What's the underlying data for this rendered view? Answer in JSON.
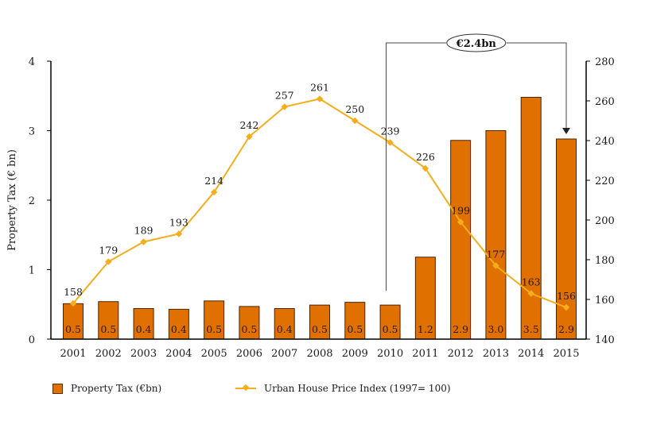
{
  "chart_data": {
    "type": "bar",
    "title": "",
    "categories": [
      "2001",
      "2002",
      "2003",
      "2004",
      "2005",
      "2006",
      "2007",
      "2008",
      "2009",
      "2010",
      "2011",
      "2012",
      "2013",
      "2014",
      "2015"
    ],
    "series": [
      {
        "name": "Property Tax (€bn)",
        "type": "bar",
        "axis": "left",
        "color": "#e07000",
        "values": [
          0.51,
          0.54,
          0.44,
          0.43,
          0.55,
          0.47,
          0.44,
          0.49,
          0.53,
          0.49,
          1.18,
          2.86,
          3.0,
          3.48,
          2.88
        ],
        "labels": [
          "0.5",
          "0.5",
          "0.4",
          "0.4",
          "0.5",
          "0.5",
          "0.4",
          "0.5",
          "0.5",
          "0.5",
          "1.2",
          "2.9",
          "3.0",
          "3.5",
          "2.9"
        ]
      },
      {
        "name": "Urban House Price Index (1997=100)",
        "type": "line",
        "axis": "right",
        "color": "#f5ad1c",
        "values": [
          158,
          179,
          189,
          193,
          214,
          242,
          257,
          261,
          250,
          239,
          226,
          199,
          177,
          163,
          156
        ],
        "labels": [
          "158",
          "179",
          "189",
          "193",
          "214",
          "242",
          "257",
          "261",
          "250",
          "239",
          "226",
          "199",
          "177",
          "163",
          "156"
        ]
      }
    ],
    "ylabel": "Property Tax (€ bn)",
    "ylim": [
      0,
      4
    ],
    "yticks": [
      "0",
      "1",
      "2",
      "3",
      "4"
    ],
    "y2lim": [
      140,
      280
    ],
    "y2ticks": [
      "140",
      "160",
      "180",
      "200",
      "220",
      "240",
      "260",
      "280"
    ],
    "annotation": {
      "text": "€2.4bn",
      "from_category": "2010",
      "to_category": "2015"
    },
    "legend": {
      "position": "bottom",
      "bar_label": "Property Tax (€bn)",
      "line_label": "Urban House Price Index (1997= 100)"
    },
    "grid": false
  }
}
